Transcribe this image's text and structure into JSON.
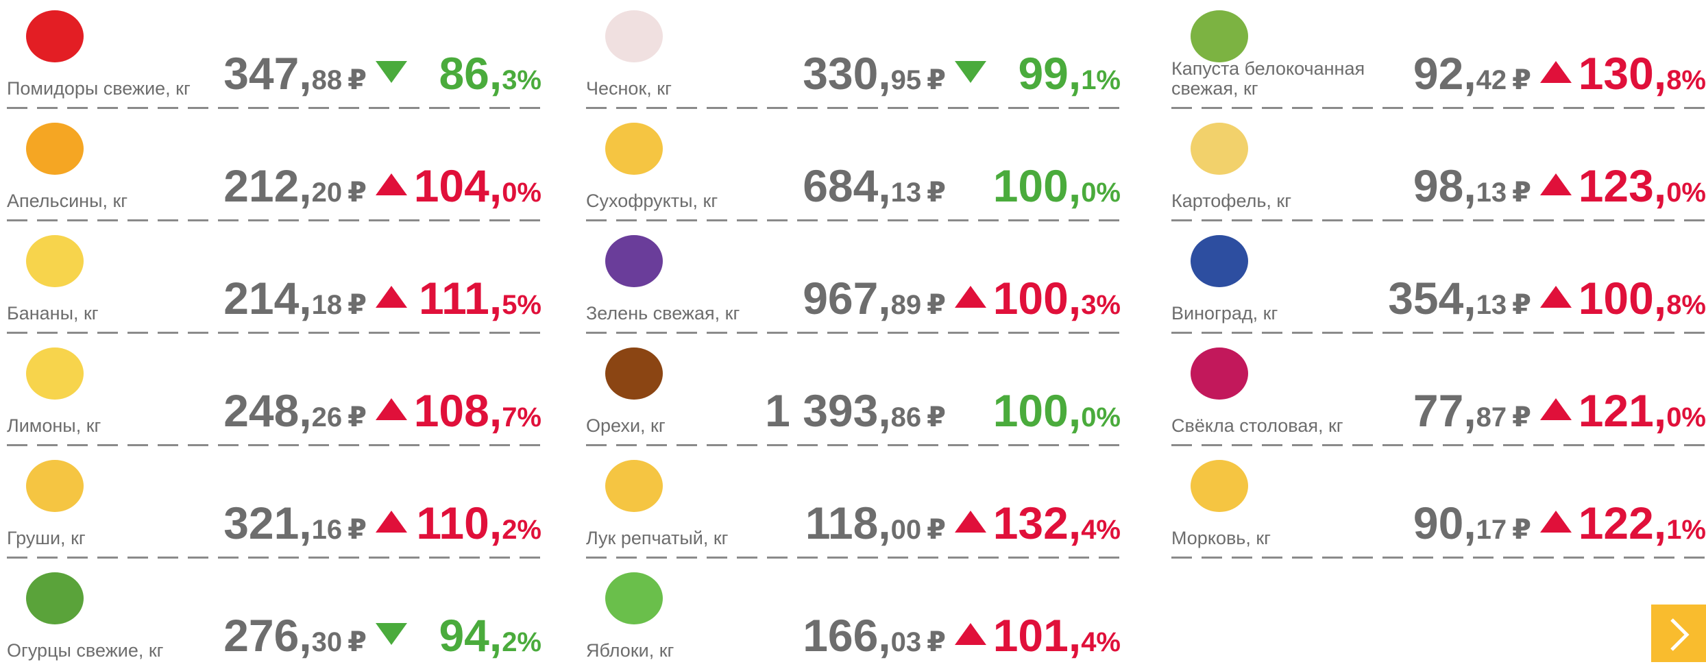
{
  "currency": "₽",
  "columns": [
    {
      "items": [
        {
          "name": "Помидоры свежие, кг",
          "price_int": "347,",
          "price_dec": "88",
          "trend": "down",
          "pct_int": "86,",
          "pct_dec": "3%"
        },
        {
          "name": "Апельсины, кг",
          "price_int": "212,",
          "price_dec": "20",
          "trend": "up",
          "pct_int": "104,",
          "pct_dec": "0%"
        },
        {
          "name": "Бананы, кг",
          "price_int": "214,",
          "price_dec": "18",
          "trend": "up",
          "pct_int": "111,",
          "pct_dec": "5%"
        },
        {
          "name": "Лимоны, кг",
          "price_int": "248,",
          "price_dec": "26",
          "trend": "up",
          "pct_int": "108,",
          "pct_dec": "7%"
        },
        {
          "name": "Груши, кг",
          "price_int": "321,",
          "price_dec": "16",
          "trend": "up",
          "pct_int": "110,",
          "pct_dec": "2%"
        },
        {
          "name": "Огурцы свежие, кг",
          "price_int": "276,",
          "price_dec": "30",
          "trend": "down",
          "pct_int": "94,",
          "pct_dec": "2%"
        }
      ]
    },
    {
      "items": [
        {
          "name": "Чеснок, кг",
          "price_int": "330,",
          "price_dec": "95",
          "trend": "down",
          "pct_int": "99,",
          "pct_dec": "1%"
        },
        {
          "name": "Сухофрукты, кг",
          "price_int": "684,",
          "price_dec": "13",
          "trend": null,
          "pct_int": "100,",
          "pct_dec": "0%"
        },
        {
          "name": "Зелень свежая, кг",
          "price_int": "967,",
          "price_dec": "89",
          "trend": "up",
          "pct_int": "100,",
          "pct_dec": "3%"
        },
        {
          "name": "Орехи, кг",
          "price_int": "1 393,",
          "price_dec": "86",
          "trend": null,
          "pct_int": "100,",
          "pct_dec": "0%"
        },
        {
          "name": "Лук репчатый, кг",
          "price_int": "118,",
          "price_dec": "00",
          "trend": "up",
          "pct_int": "132,",
          "pct_dec": "4%"
        },
        {
          "name": "Яблоки, кг",
          "price_int": "166,",
          "price_dec": "03",
          "trend": "up",
          "pct_int": "101,",
          "pct_dec": "4%"
        }
      ]
    },
    {
      "items": [
        {
          "name": "Капуста белокочанная свежая, кг",
          "price_int": "92,",
          "price_dec": "42",
          "trend": "up",
          "pct_int": "130,",
          "pct_dec": "8%"
        },
        {
          "name": "Картофель, кг",
          "price_int": "98,",
          "price_dec": "13",
          "trend": "up",
          "pct_int": "123,",
          "pct_dec": "0%"
        },
        {
          "name": "Виноград, кг",
          "price_int": "354,",
          "price_dec": "13",
          "trend": "up",
          "pct_int": "100,",
          "pct_dec": "8%"
        },
        {
          "name": "Свёкла столовая, кг",
          "price_int": "77,",
          "price_dec": "87",
          "trend": "up",
          "pct_int": "121,",
          "pct_dec": "0%"
        },
        {
          "name": "Морковь, кг",
          "price_int": "90,",
          "price_dec": "17",
          "trend": "up",
          "pct_int": "122,",
          "pct_dec": "1%"
        }
      ]
    }
  ]
}
